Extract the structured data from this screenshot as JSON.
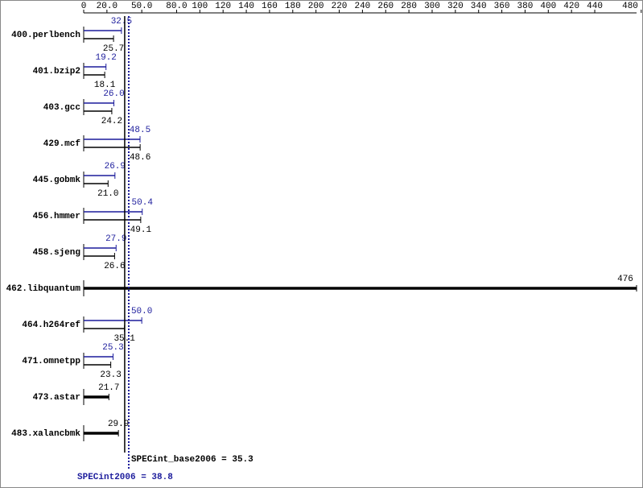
{
  "chart_data": {
    "type": "bar",
    "orientation": "horizontal",
    "categories": [
      "400.perlbench",
      "401.bzip2",
      "403.gcc",
      "429.mcf",
      "445.gobmk",
      "456.hmmer",
      "458.sjeng",
      "462.libquantum",
      "464.h264ref",
      "471.omnetpp",
      "473.astar",
      "483.xalancbmk"
    ],
    "series": [
      {
        "name": "SPECint2006",
        "color": "#1c1c9c",
        "values": [
          32.5,
          19.2,
          26.0,
          48.5,
          26.9,
          50.4,
          27.9,
          null,
          50.0,
          25.3,
          null,
          null
        ],
        "value_labels": [
          "32.5",
          "19.2",
          "26.0",
          "48.5",
          "26.9",
          "50.4",
          "27.9",
          null,
          "50.0",
          "25.3",
          null,
          null
        ]
      },
      {
        "name": "SPECint_base2006",
        "color": "#000000",
        "values": [
          25.7,
          18.1,
          24.2,
          48.6,
          21.0,
          49.1,
          26.6,
          476,
          35.1,
          23.3,
          21.7,
          29.9
        ],
        "value_labels": [
          "25.7",
          "18.1",
          "24.2",
          "48.6",
          "21.0",
          "49.1",
          "26.6",
          "476",
          "35.1",
          "23.3",
          "21.7",
          "29.9"
        ]
      }
    ],
    "xlim": [
      0,
      476
    ],
    "xticks": [
      0,
      {
        "value": 20,
        "label": "20.0"
      },
      {
        "value": 50,
        "label": "50.0"
      },
      {
        "value": 80,
        "label": "80.0"
      },
      100,
      120,
      140,
      160,
      180,
      200,
      220,
      240,
      260,
      280,
      300,
      320,
      340,
      360,
      380,
      400,
      420,
      440,
      480
    ],
    "reference_lines": [
      {
        "label": "SPECint_base2006 = 35.3",
        "value": 35.3,
        "color": "#000000"
      },
      {
        "label": "SPECint2006 = 38.8",
        "value": 38.8,
        "color": "#1c1c9c"
      }
    ]
  }
}
